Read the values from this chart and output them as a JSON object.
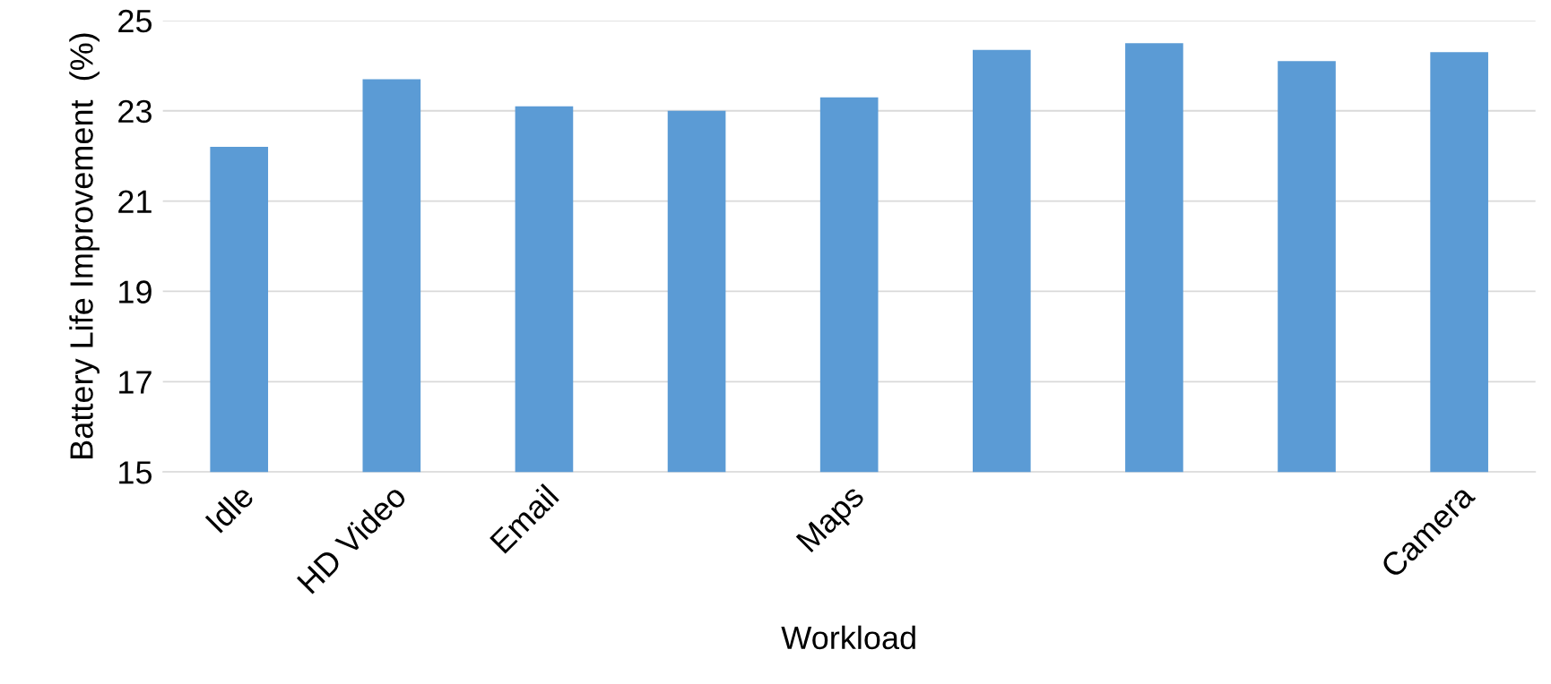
{
  "chart_data": {
    "type": "bar",
    "xlabel": "Workload",
    "ylabel": "Battery Life Improvement  (%)",
    "categories": [
      "Idle",
      "HD Video",
      "Email",
      null,
      "Maps",
      null,
      null,
      null,
      "Camera"
    ],
    "values": [
      22.2,
      23.7,
      23.1,
      23.0,
      23.3,
      24.35,
      24.5,
      24.1,
      24.3
    ],
    "color": "#5b9bd5",
    "ylim": [
      15,
      25
    ],
    "yticks": [
      15,
      17,
      19,
      21,
      23,
      25
    ],
    "grid": "y"
  }
}
